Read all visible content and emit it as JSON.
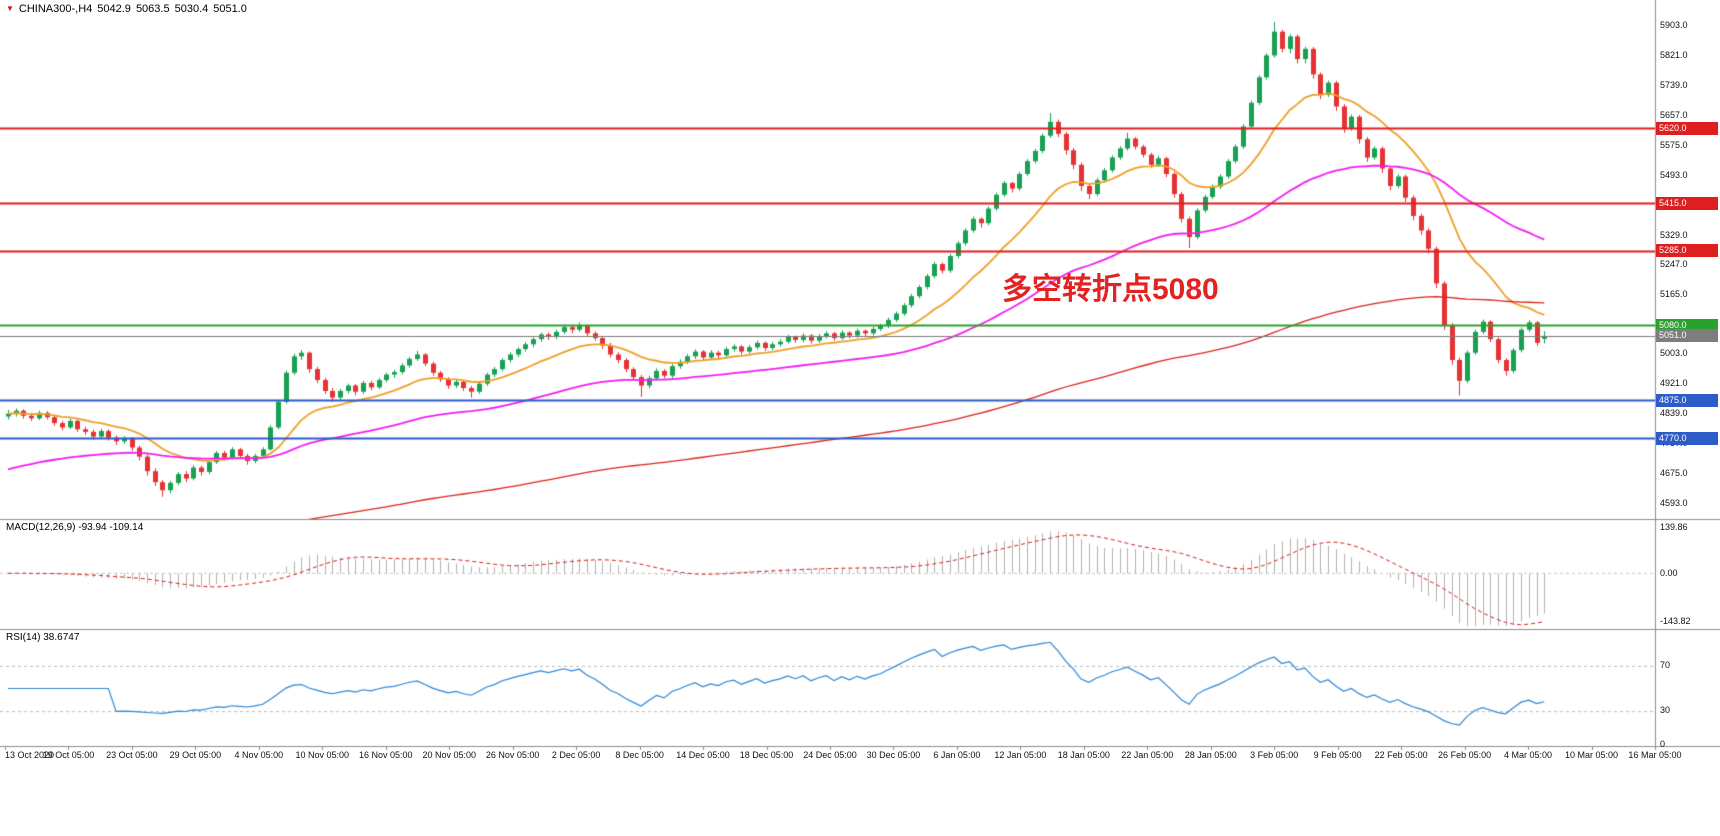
{
  "title_bar": {
    "marker_color": "#cc1414",
    "symbol_period": "CHINA300-,H4",
    "open": "5042.9",
    "high": "5063.5",
    "low": "5030.4",
    "close": "5051.0"
  },
  "chart_data": {
    "type": "candlestick",
    "symbol": "CHINA300-",
    "timeframe": "H4",
    "title": "CHINA300-,H4 5042.9 5063.5 5030.4 5051.0",
    "colors": {
      "background": "#ffffff",
      "bull": "#18a153",
      "bear": "#e63232"
    },
    "y_axis": {
      "ylim": [
        4560,
        5950
      ],
      "tick_labels": [
        "5903.0",
        "5821.0",
        "5739.0",
        "5657.0",
        "5575.0",
        "5493.0",
        "5411.0",
        "5329.0",
        "5247.0",
        "5165.0",
        "5083.0",
        "5003.0",
        "4921.0",
        "4839.0",
        "4757.0",
        "4675.0",
        "4593.0"
      ]
    },
    "x_axis": {
      "labels": [
        "13 Oct 2020",
        "19 Oct 05:00",
        "23 Oct 05:00",
        "29 Oct 05:00",
        "4 Nov 05:00",
        "10 Nov 05:00",
        "16 Nov 05:00",
        "20 Nov 05:00",
        "26 Nov 05:00",
        "2 Dec 05:00",
        "8 Dec 05:00",
        "14 Dec 05:00",
        "18 Dec 05:00",
        "24 Dec 05:00",
        "30 Dec 05:00",
        "6 Jan 05:00",
        "12 Jan 05:00",
        "18 Jan 05:00",
        "22 Jan 05:00",
        "28 Jan 05:00",
        "3 Feb 05:00",
        "9 Feb 05:00",
        "22 Feb 05:00",
        "26 Feb 05:00",
        "4 Mar 05:00",
        "10 Mar 05:00",
        "16 Mar 05:00"
      ]
    },
    "levels": [
      {
        "label": "5620.0",
        "value": 5620.0,
        "color": "#de1f1f",
        "line_width": 2,
        "role": "resistance"
      },
      {
        "label": "5415.0",
        "value": 5415.0,
        "color": "#de1f1f",
        "line_width": 2,
        "role": "resistance"
      },
      {
        "label": "5285.0",
        "value": 5285.0,
        "color": "#de1f1f",
        "line_width": 2,
        "role": "resistance"
      },
      {
        "label": "5080.0",
        "value": 5080.0,
        "color": "#2aa12e",
        "line_width": 2,
        "role": "pivot"
      },
      {
        "label": "4875.0",
        "value": 4875.0,
        "color": "#2d5bc8",
        "line_width": 2,
        "role": "support"
      },
      {
        "label": "4770.0",
        "value": 4770.0,
        "color": "#2d5bc8",
        "line_width": 2,
        "role": "support"
      },
      {
        "label": "5051.0",
        "value": 5051.0,
        "color": "#7d7d7d",
        "line_width": 1,
        "role": "current-price"
      }
    ],
    "annotation": {
      "text": "多空转折点5080",
      "color": "#e32222"
    },
    "moving_averages": [
      {
        "name": "fast-ma",
        "period": 16,
        "seed": null,
        "color": "#efa028",
        "width": 1.8
      },
      {
        "name": "medium-ma",
        "period": 60,
        "seed": 4680,
        "color": "#f21ff2",
        "width": 1.8
      },
      {
        "name": "slow-ma",
        "period": 200,
        "seed": 4435,
        "color": "#d9261f",
        "width": 1.3
      }
    ],
    "macd": {
      "label": "MACD(12,26,9) -93.94 -109.14",
      "params": [
        12,
        26,
        9
      ],
      "current_macd": -93.94,
      "current_signal": -109.14,
      "axis_labels": [
        "139.86",
        "0.00",
        "-143.82"
      ],
      "axis_values": [
        139.86,
        0,
        -143.82
      ],
      "histogram_color": "#b2b2b2",
      "signal_color": "#d42020"
    },
    "rsi": {
      "label": "RSI(14) 38.6747",
      "period": 14,
      "current": 38.6747,
      "axis_labels": [
        "70",
        "30",
        "0"
      ],
      "axis_values": [
        70,
        30,
        0
      ],
      "line_color": "#2d87d8",
      "level_lines": [
        70,
        30
      ]
    },
    "candles": [
      [
        4830,
        4848,
        4822,
        4838
      ],
      [
        4838,
        4852,
        4830,
        4846
      ],
      [
        4846,
        4850,
        4824,
        4832
      ],
      [
        4832,
        4840,
        4818,
        4825
      ],
      [
        4825,
        4846,
        4820,
        4840
      ],
      [
        4840,
        4845,
        4822,
        4828
      ],
      [
        4828,
        4833,
        4805,
        4812
      ],
      [
        4812,
        4818,
        4792,
        4800
      ],
      [
        4800,
        4824,
        4796,
        4818
      ],
      [
        4818,
        4822,
        4788,
        4795
      ],
      [
        4795,
        4802,
        4780,
        4788
      ],
      [
        4788,
        4794,
        4766,
        4775
      ],
      [
        4775,
        4796,
        4770,
        4790
      ],
      [
        4790,
        4795,
        4764,
        4772
      ],
      [
        4772,
        4778,
        4752,
        4762
      ],
      [
        4762,
        4776,
        4755,
        4770
      ],
      [
        4770,
        4774,
        4736,
        4745
      ],
      [
        4745,
        4750,
        4710,
        4720
      ],
      [
        4720,
        4726,
        4668,
        4680
      ],
      [
        4680,
        4688,
        4640,
        4650
      ],
      [
        4650,
        4656,
        4610,
        4628
      ],
      [
        4628,
        4654,
        4620,
        4648
      ],
      [
        4648,
        4678,
        4642,
        4672
      ],
      [
        4672,
        4680,
        4650,
        4660
      ],
      [
        4660,
        4696,
        4655,
        4690
      ],
      [
        4690,
        4695,
        4668,
        4678
      ],
      [
        4678,
        4710,
        4672,
        4705
      ],
      [
        4705,
        4736,
        4700,
        4730
      ],
      [
        4730,
        4736,
        4710,
        4718
      ],
      [
        4718,
        4746,
        4712,
        4740
      ],
      [
        4740,
        4744,
        4715,
        4722
      ],
      [
        4722,
        4728,
        4698,
        4708
      ],
      [
        4708,
        4728,
        4702,
        4722
      ],
      [
        4722,
        4746,
        4716,
        4740
      ],
      [
        4740,
        4806,
        4736,
        4800
      ],
      [
        4800,
        4876,
        4795,
        4870
      ],
      [
        4870,
        4956,
        4865,
        4950
      ],
      [
        4950,
        5002,
        4944,
        4995
      ],
      [
        4995,
        5012,
        4985,
        5005
      ],
      [
        5005,
        5008,
        4950,
        4960
      ],
      [
        4960,
        4966,
        4922,
        4930
      ],
      [
        4930,
        4936,
        4892,
        4900
      ],
      [
        4900,
        4908,
        4870,
        4882
      ],
      [
        4882,
        4906,
        4876,
        4900
      ],
      [
        4900,
        4920,
        4893,
        4915
      ],
      [
        4915,
        4919,
        4888,
        4898
      ],
      [
        4898,
        4928,
        4892,
        4922
      ],
      [
        4922,
        4928,
        4902,
        4910
      ],
      [
        4910,
        4936,
        4905,
        4930
      ],
      [
        4930,
        4950,
        4924,
        4945
      ],
      [
        4945,
        4958,
        4936,
        4952
      ],
      [
        4952,
        4976,
        4946,
        4970
      ],
      [
        4970,
        4993,
        4964,
        4988
      ],
      [
        4988,
        5010,
        4982,
        5000
      ],
      [
        5000,
        5004,
        4968,
        4975
      ],
      [
        4975,
        4980,
        4942,
        4950
      ],
      [
        4950,
        4955,
        4925,
        4932
      ],
      [
        4932,
        4938,
        4906,
        4915
      ],
      [
        4915,
        4932,
        4908,
        4925
      ],
      [
        4925,
        4930,
        4900,
        4908
      ],
      [
        4908,
        4914,
        4882,
        4898
      ],
      [
        4898,
        4926,
        4892,
        4920
      ],
      [
        4920,
        4950,
        4914,
        4945
      ],
      [
        4945,
        4966,
        4938,
        4960
      ],
      [
        4960,
        4990,
        4954,
        4985
      ],
      [
        4985,
        5006,
        4978,
        5000
      ],
      [
        5000,
        5020,
        4993,
        5015
      ],
      [
        5015,
        5034,
        5008,
        5028
      ],
      [
        5028,
        5047,
        5020,
        5042
      ],
      [
        5042,
        5060,
        5035,
        5055
      ],
      [
        5055,
        5060,
        5040,
        5048
      ],
      [
        5048,
        5068,
        5042,
        5062
      ],
      [
        5062,
        5082,
        5056,
        5075
      ],
      [
        5075,
        5080,
        5058,
        5068
      ],
      [
        5068,
        5088,
        5062,
        5078
      ],
      [
        5078,
        5082,
        5050,
        5058
      ],
      [
        5058,
        5063,
        5038,
        5045
      ],
      [
        5045,
        5050,
        5016,
        5025
      ],
      [
        5025,
        5032,
        4992,
        5000
      ],
      [
        5000,
        5006,
        4976,
        4985
      ],
      [
        4985,
        4990,
        4952,
        4960
      ],
      [
        4960,
        4965,
        4928,
        4938
      ],
      [
        4938,
        4944,
        4884,
        4915
      ],
      [
        4915,
        4942,
        4908,
        4935
      ],
      [
        4935,
        4962,
        4928,
        4955
      ],
      [
        4955,
        4960,
        4934,
        4942
      ],
      [
        4942,
        4974,
        4936,
        4968
      ],
      [
        4968,
        4987,
        4961,
        4980
      ],
      [
        4980,
        5001,
        4974,
        4995
      ],
      [
        4995,
        5014,
        4988,
        5008
      ],
      [
        5008,
        5012,
        4984,
        4992
      ],
      [
        4992,
        5012,
        4986,
        5005
      ],
      [
        5005,
        5010,
        4988,
        4998
      ],
      [
        4998,
        5021,
        4992,
        5015
      ],
      [
        5015,
        5028,
        5008,
        5022
      ],
      [
        5022,
        5026,
        5000,
        5008
      ],
      [
        5008,
        5026,
        5002,
        5020
      ],
      [
        5020,
        5038,
        5014,
        5032
      ],
      [
        5032,
        5036,
        5010,
        5018
      ],
      [
        5018,
        5034,
        5012,
        5028
      ],
      [
        5028,
        5042,
        5022,
        5035
      ],
      [
        5035,
        5054,
        5030,
        5048
      ],
      [
        5048,
        5052,
        5032,
        5040
      ],
      [
        5040,
        5058,
        5034,
        5052
      ],
      [
        5052,
        5056,
        5030,
        5038
      ],
      [
        5038,
        5056,
        5032,
        5050
      ],
      [
        5050,
        5064,
        5044,
        5058
      ],
      [
        5058,
        5062,
        5038,
        5045
      ],
      [
        5045,
        5066,
        5040,
        5060
      ],
      [
        5060,
        5064,
        5044,
        5052
      ],
      [
        5052,
        5071,
        5046,
        5065
      ],
      [
        5065,
        5069,
        5050,
        5058
      ],
      [
        5058,
        5076,
        5052,
        5070
      ],
      [
        5070,
        5084,
        5064,
        5078
      ],
      [
        5078,
        5101,
        5072,
        5095
      ],
      [
        5095,
        5118,
        5089,
        5112
      ],
      [
        5112,
        5141,
        5106,
        5135
      ],
      [
        5135,
        5166,
        5129,
        5160
      ],
      [
        5160,
        5191,
        5154,
        5185
      ],
      [
        5185,
        5221,
        5179,
        5215
      ],
      [
        5215,
        5254,
        5209,
        5248
      ],
      [
        5248,
        5252,
        5222,
        5230
      ],
      [
        5230,
        5276,
        5224,
        5270
      ],
      [
        5270,
        5311,
        5264,
        5305
      ],
      [
        5305,
        5346,
        5299,
        5340
      ],
      [
        5340,
        5378,
        5334,
        5372
      ],
      [
        5372,
        5376,
        5348,
        5360
      ],
      [
        5360,
        5406,
        5354,
        5400
      ],
      [
        5400,
        5444,
        5394,
        5438
      ],
      [
        5438,
        5476,
        5432,
        5470
      ],
      [
        5470,
        5474,
        5444,
        5455
      ],
      [
        5455,
        5501,
        5449,
        5495
      ],
      [
        5495,
        5536,
        5489,
        5530
      ],
      [
        5530,
        5564,
        5524,
        5558
      ],
      [
        5558,
        5606,
        5552,
        5600
      ],
      [
        5600,
        5662,
        5594,
        5638
      ],
      [
        5638,
        5644,
        5596,
        5605
      ],
      [
        5605,
        5610,
        5548,
        5560
      ],
      [
        5560,
        5566,
        5508,
        5520
      ],
      [
        5520,
        5526,
        5448,
        5462
      ],
      [
        5462,
        5468,
        5426,
        5440
      ],
      [
        5440,
        5484,
        5434,
        5478
      ],
      [
        5478,
        5511,
        5472,
        5505
      ],
      [
        5505,
        5546,
        5499,
        5540
      ],
      [
        5540,
        5571,
        5534,
        5565
      ],
      [
        5565,
        5608,
        5559,
        5592
      ],
      [
        5592,
        5596,
        5562,
        5570
      ],
      [
        5570,
        5575,
        5540,
        5548
      ],
      [
        5548,
        5553,
        5512,
        5520
      ],
      [
        5520,
        5544,
        5514,
        5538
      ],
      [
        5538,
        5542,
        5486,
        5495
      ],
      [
        5495,
        5500,
        5430,
        5440
      ],
      [
        5440,
        5446,
        5362,
        5372
      ],
      [
        5372,
        5378,
        5292,
        5322
      ],
      [
        5322,
        5401,
        5316,
        5395
      ],
      [
        5395,
        5438,
        5389,
        5432
      ],
      [
        5432,
        5466,
        5426,
        5460
      ],
      [
        5460,
        5494,
        5454,
        5488
      ],
      [
        5488,
        5536,
        5482,
        5530
      ],
      [
        5530,
        5576,
        5524,
        5570
      ],
      [
        5570,
        5631,
        5564,
        5625
      ],
      [
        5625,
        5696,
        5619,
        5690
      ],
      [
        5690,
        5766,
        5684,
        5760
      ],
      [
        5760,
        5826,
        5754,
        5820
      ],
      [
        5820,
        5912,
        5814,
        5885
      ],
      [
        5885,
        5890,
        5828,
        5838
      ],
      [
        5838,
        5878,
        5826,
        5872
      ],
      [
        5872,
        5877,
        5798,
        5810
      ],
      [
        5810,
        5844,
        5798,
        5838
      ],
      [
        5838,
        5843,
        5756,
        5768
      ],
      [
        5768,
        5773,
        5700,
        5712
      ],
      [
        5712,
        5751,
        5706,
        5745
      ],
      [
        5745,
        5750,
        5668,
        5680
      ],
      [
        5680,
        5686,
        5608,
        5620
      ],
      [
        5620,
        5658,
        5614,
        5652
      ],
      [
        5652,
        5657,
        5578,
        5590
      ],
      [
        5590,
        5596,
        5528,
        5540
      ],
      [
        5540,
        5571,
        5534,
        5565
      ],
      [
        5565,
        5570,
        5498,
        5510
      ],
      [
        5510,
        5516,
        5450,
        5462
      ],
      [
        5462,
        5494,
        5456,
        5488
      ],
      [
        5488,
        5493,
        5418,
        5430
      ],
      [
        5430,
        5436,
        5368,
        5380
      ],
      [
        5380,
        5386,
        5328,
        5340
      ],
      [
        5340,
        5346,
        5278,
        5290
      ],
      [
        5290,
        5296,
        5182,
        5195
      ],
      [
        5195,
        5201,
        5068,
        5080
      ],
      [
        5080,
        5086,
        4972,
        4985
      ],
      [
        4985,
        4991,
        4888,
        4928
      ],
      [
        4928,
        5011,
        4922,
        5005
      ],
      [
        5005,
        5068,
        4999,
        5062
      ],
      [
        5062,
        5096,
        5056,
        5090
      ],
      [
        5090,
        5094,
        5034,
        5042
      ],
      [
        5042,
        5047,
        4976,
        4985
      ],
      [
        4985,
        4990,
        4942,
        4955
      ],
      [
        4955,
        5018,
        4949,
        5012
      ],
      [
        5012,
        5074,
        5006,
        5068
      ],
      [
        5068,
        5094,
        5062,
        5088
      ],
      [
        5088,
        5092,
        5024,
        5032
      ],
      [
        5043,
        5064,
        5030,
        5051
      ]
    ]
  }
}
